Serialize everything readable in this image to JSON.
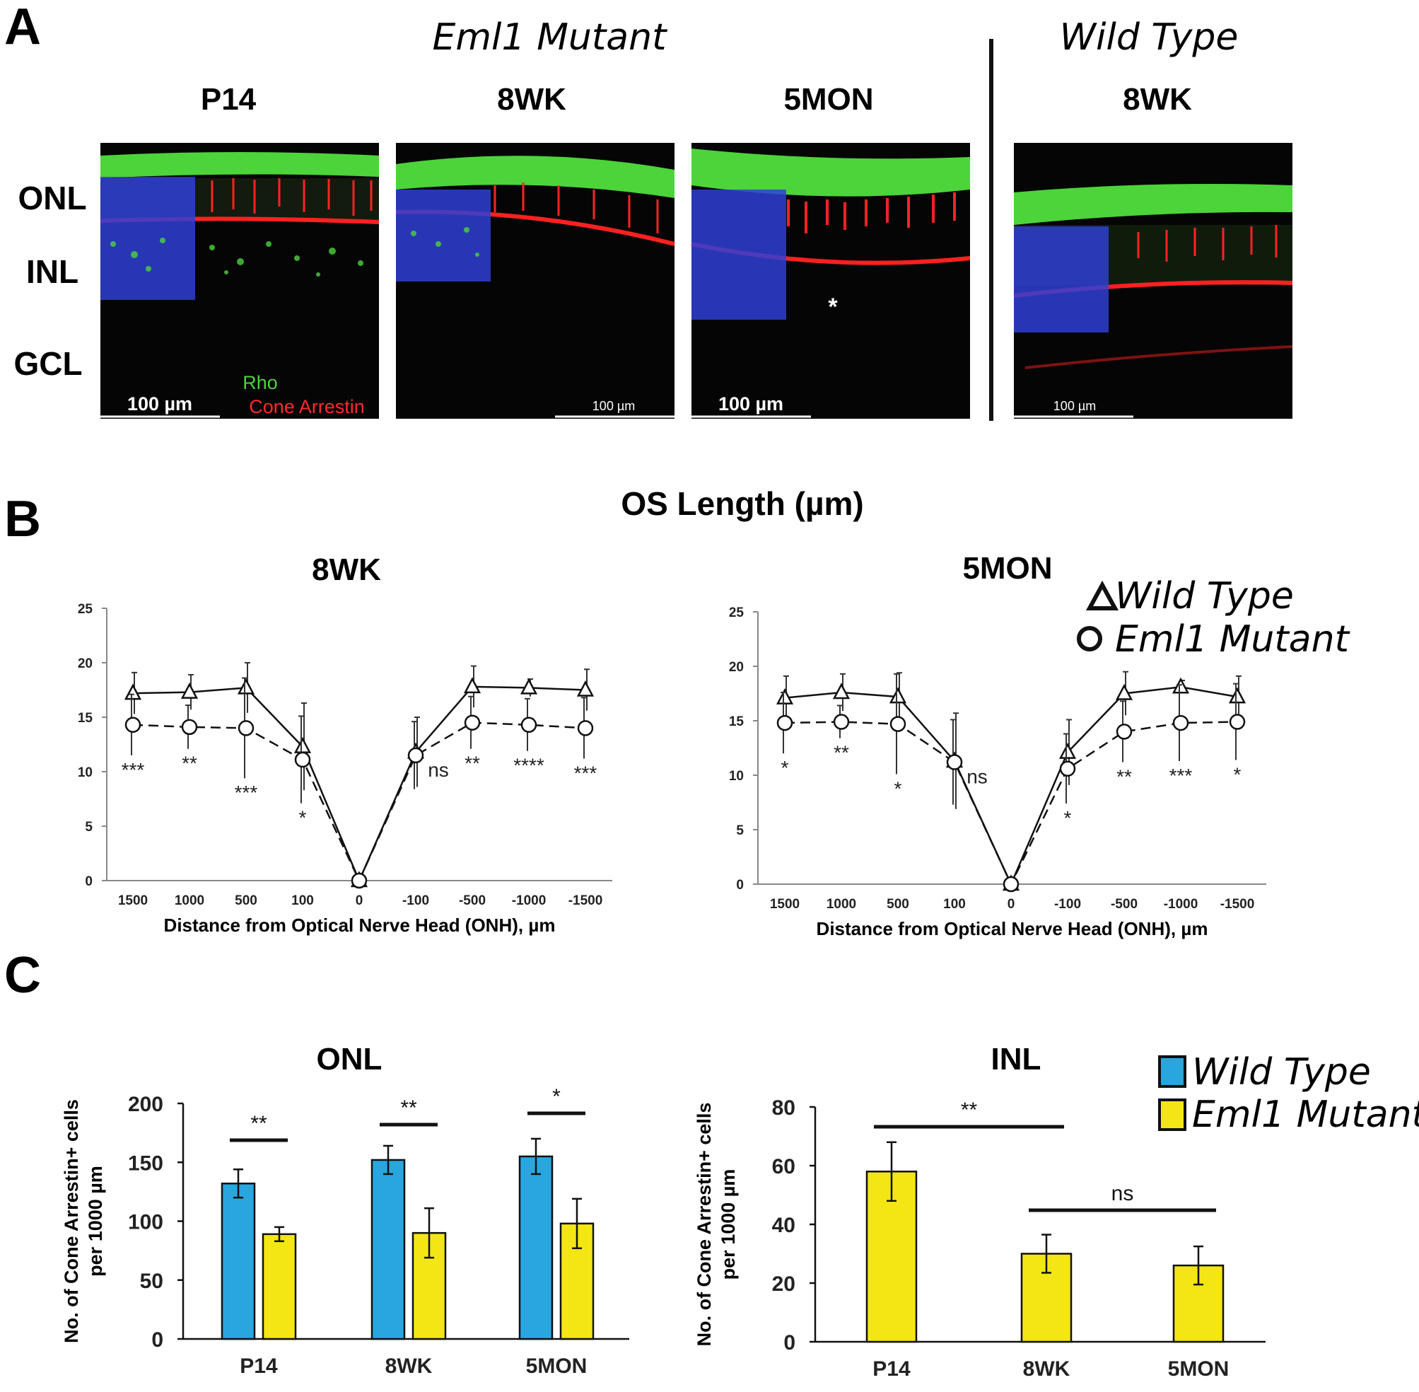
{
  "panel_letters": [
    "A",
    "B",
    "C"
  ],
  "panel_a": {
    "group_mutant": "Eml1 Mutant",
    "group_wt": "Wild Type",
    "columns": [
      "P14",
      "8WK",
      "5MON",
      "8WK"
    ],
    "layers": [
      "ONL",
      "INL",
      "GCL"
    ],
    "legend_rho": "Rho",
    "legend_cone": "Cone Arrestin",
    "scale_labels": [
      "100 µm",
      "100 µm",
      "100 µm",
      "100 µm"
    ],
    "asterisk": "*",
    "colors": {
      "rho": "#4cd43a",
      "cone": "#ff2020",
      "dapi": "#2f3fd6",
      "bg": "#050505"
    }
  },
  "panel_b": {
    "title": "OS Length (µm)",
    "legend": {
      "wt": "Wild Type",
      "mutant": "Eml1 Mutant"
    }
  },
  "panel_c": {
    "legend": {
      "wt": "Wild Type",
      "mutant": "Eml1 Mutant"
    },
    "colors": {
      "wt": "#2aa6de",
      "mutant": "#f3e614"
    }
  },
  "chart_data": [
    {
      "id": "b-8wk",
      "type": "line",
      "title": "8WK",
      "xlabel": "Distance from Optical Nerve Head (ONH), µm",
      "ylabel": "",
      "categories": [
        "1500",
        "1000",
        "500",
        "100",
        "0",
        "-100",
        "-500",
        "-1000",
        "-1500"
      ],
      "ylim": [
        0,
        25
      ],
      "yticks": [
        "0",
        "5",
        "10",
        "15",
        "20",
        "25"
      ],
      "series": [
        {
          "name": "Wild Type",
          "marker": "triangle",
          "style": "solid",
          "values": [
            17.2,
            17.3,
            17.7,
            12.3,
            0,
            11.8,
            17.8,
            17.7,
            17.5
          ],
          "errors": [
            1.9,
            1.6,
            2.3,
            4.0,
            0,
            3.2,
            1.9,
            0.8,
            1.9
          ]
        },
        {
          "name": "Eml1 Mutant",
          "marker": "circle",
          "style": "dashed",
          "values": [
            14.3,
            14.1,
            14.0,
            11.1,
            0,
            11.5,
            14.5,
            14.3,
            14.0
          ],
          "errors": [
            2.8,
            2.0,
            4.6,
            4.0,
            0,
            3.1,
            2.4,
            2.4,
            2.8
          ]
        }
      ],
      "annotations": [
        "***",
        "**",
        "***",
        "*",
        "",
        "ns",
        "**",
        "****",
        "***"
      ]
    },
    {
      "id": "b-5mon",
      "type": "line",
      "title": "5MON",
      "xlabel": "Distance from Optical Nerve Head (ONH), µm",
      "ylabel": "",
      "categories": [
        "1500",
        "1000",
        "500",
        "100",
        "0",
        "-100",
        "-500",
        "-1000",
        "-1500"
      ],
      "ylim": [
        0,
        25
      ],
      "yticks": [
        "0",
        "5",
        "10",
        "15",
        "20",
        "25"
      ],
      "series": [
        {
          "name": "Wild Type",
          "marker": "triangle",
          "style": "solid",
          "values": [
            17.1,
            17.6,
            17.2,
            11.3,
            0,
            12.1,
            17.5,
            18.1,
            17.2
          ],
          "errors": [
            2.0,
            1.7,
            2.2,
            4.4,
            0,
            3.0,
            2.0,
            0.6,
            1.9
          ]
        },
        {
          "name": "Eml1 Mutant",
          "marker": "circle",
          "style": "dashed",
          "values": [
            14.8,
            14.9,
            14.7,
            11.2,
            0,
            10.6,
            14.0,
            14.8,
            14.9
          ],
          "errors": [
            2.8,
            1.5,
            4.6,
            3.9,
            0,
            3.2,
            2.8,
            3.5,
            3.5
          ]
        }
      ],
      "annotations": [
        "*",
        "**",
        "*",
        "ns",
        "",
        "*",
        "**",
        "***",
        "*"
      ]
    },
    {
      "id": "c-onl",
      "type": "bar",
      "title": "ONL",
      "xlabel": "",
      "ylabel": "No. of Cone Arrestin+ cells per 1000 µm",
      "ylabel_lines": [
        "No. of Cone Arrestin+ cells",
        "per 1000 µm"
      ],
      "categories": [
        "P14",
        "8WK",
        "5MON"
      ],
      "ylim": [
        0,
        200
      ],
      "yticks": [
        "0",
        "50",
        "100",
        "150",
        "200"
      ],
      "series": [
        {
          "name": "Wild Type",
          "values": [
            132,
            152,
            155
          ],
          "errors": [
            12,
            12,
            15
          ]
        },
        {
          "name": "Eml1 Mutant",
          "values": [
            89,
            90,
            98
          ],
          "errors": [
            6,
            21,
            21
          ]
        }
      ],
      "significance": [
        {
          "groups": [
            "P14-Wild Type",
            "P14-Eml1 Mutant"
          ],
          "label": "**"
        },
        {
          "groups": [
            "8WK-Wild Type",
            "8WK-Eml1 Mutant"
          ],
          "label": "**"
        },
        {
          "groups": [
            "5MON-Wild Type",
            "5MON-Eml1 Mutant"
          ],
          "label": "*"
        }
      ]
    },
    {
      "id": "c-inl",
      "type": "bar",
      "title": "INL",
      "xlabel": "",
      "ylabel": "No. of Cone Arrestin+ cells per 1000 µm",
      "ylabel_lines": [
        "No. of Cone Arrestin+ cells",
        "per 1000 µm"
      ],
      "categories": [
        "P14",
        "8WK",
        "5MON"
      ],
      "ylim": [
        0,
        80
      ],
      "yticks": [
        "0",
        "20",
        "40",
        "60",
        "80"
      ],
      "series": [
        {
          "name": "Eml1 Mutant",
          "values": [
            58,
            30,
            26
          ],
          "errors": [
            10,
            6.5,
            6.5
          ]
        }
      ],
      "significance": [
        {
          "groups": [
            "P14",
            "8WK"
          ],
          "label": "**"
        },
        {
          "groups": [
            "8WK",
            "5MON"
          ],
          "label": "ns"
        }
      ]
    }
  ]
}
